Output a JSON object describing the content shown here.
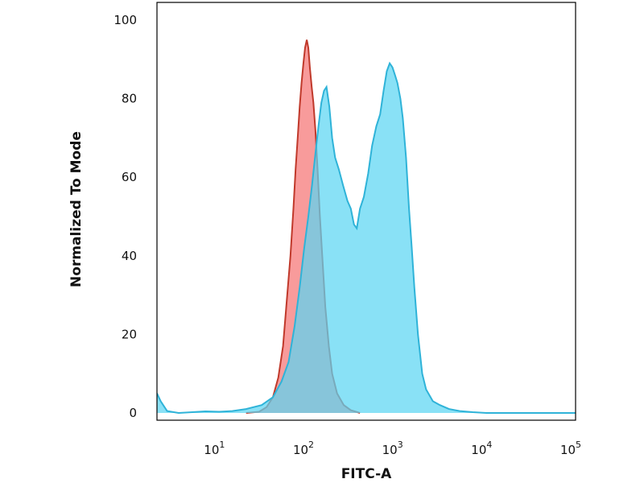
{
  "chart_data": {
    "type": "area",
    "xlabel": "FITC-A",
    "ylabel": "Normalized To Mode",
    "x_scale": "log",
    "xlim": [
      2,
      100000
    ],
    "ylim": [
      0,
      100
    ],
    "y_ticks": [
      0,
      20,
      40,
      60,
      80,
      100
    ],
    "x_ticks": [
      {
        "value": 10,
        "base": "10",
        "exp": "1"
      },
      {
        "value": 100,
        "base": "10",
        "exp": "2"
      },
      {
        "value": 1000,
        "base": "10",
        "exp": "3"
      },
      {
        "value": 10000,
        "base": "10",
        "exp": "4"
      },
      {
        "value": 100000,
        "base": "10",
        "exp": "5"
      }
    ],
    "grid": false,
    "series": [
      {
        "color": "#f78a8a",
        "line": "#c0392b",
        "points": [
          [
            20,
            0
          ],
          [
            28,
            0.3
          ],
          [
            34,
            1.5
          ],
          [
            40,
            4
          ],
          [
            46,
            9
          ],
          [
            52,
            17
          ],
          [
            58,
            30
          ],
          [
            63,
            40
          ],
          [
            68,
            52
          ],
          [
            72,
            62
          ],
          [
            76,
            70
          ],
          [
            80,
            78
          ],
          [
            84,
            84
          ],
          [
            88,
            89
          ],
          [
            92,
            93
          ],
          [
            96,
            95
          ],
          [
            100,
            93
          ],
          [
            104,
            88
          ],
          [
            109,
            83
          ],
          [
            114,
            79
          ],
          [
            120,
            72
          ],
          [
            127,
            62
          ],
          [
            135,
            50
          ],
          [
            145,
            38
          ],
          [
            155,
            27
          ],
          [
            170,
            17
          ],
          [
            185,
            10
          ],
          [
            210,
            5
          ],
          [
            250,
            2
          ],
          [
            300,
            0.7
          ],
          [
            380,
            0
          ]
        ]
      },
      {
        "color": "#5bd6f2",
        "line": "#2fb3d8",
        "points": [
          [
            2,
            5
          ],
          [
            2.2,
            3
          ],
          [
            2.6,
            0.5
          ],
          [
            3.5,
            0
          ],
          [
            5,
            0.2
          ],
          [
            7,
            0.4
          ],
          [
            10,
            0.3
          ],
          [
            14,
            0.5
          ],
          [
            20,
            1
          ],
          [
            30,
            2
          ],
          [
            40,
            4
          ],
          [
            50,
            8
          ],
          [
            60,
            13
          ],
          [
            70,
            22
          ],
          [
            80,
            32
          ],
          [
            90,
            42
          ],
          [
            100,
            50
          ],
          [
            110,
            58
          ],
          [
            120,
            66
          ],
          [
            130,
            73
          ],
          [
            140,
            79
          ],
          [
            150,
            82
          ],
          [
            160,
            83
          ],
          [
            172,
            78
          ],
          [
            185,
            70
          ],
          [
            200,
            65
          ],
          [
            220,
            62
          ],
          [
            245,
            58
          ],
          [
            275,
            54
          ],
          [
            300,
            52
          ],
          [
            325,
            48
          ],
          [
            350,
            47
          ],
          [
            380,
            52
          ],
          [
            420,
            55
          ],
          [
            470,
            61
          ],
          [
            520,
            68
          ],
          [
            580,
            73
          ],
          [
            640,
            76
          ],
          [
            700,
            82
          ],
          [
            760,
            87
          ],
          [
            820,
            89
          ],
          [
            880,
            88
          ],
          [
            940,
            86
          ],
          [
            1000,
            84
          ],
          [
            1080,
            80
          ],
          [
            1150,
            75
          ],
          [
            1250,
            65
          ],
          [
            1350,
            52
          ],
          [
            1450,
            42
          ],
          [
            1550,
            32
          ],
          [
            1700,
            20
          ],
          [
            1900,
            10
          ],
          [
            2100,
            6
          ],
          [
            2500,
            3
          ],
          [
            3000,
            2
          ],
          [
            3800,
            1
          ],
          [
            5000,
            0.5
          ],
          [
            7000,
            0.2
          ],
          [
            10000,
            0
          ],
          [
            100000,
            0
          ]
        ]
      }
    ]
  }
}
